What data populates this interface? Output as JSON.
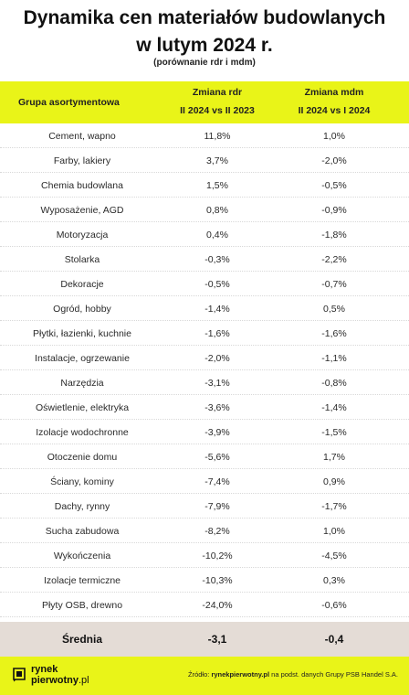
{
  "header": {
    "title_line1": "Dynamika cen materiałów budowlanych",
    "title_line2": "w lutym 2024 r.",
    "subtitle": "(porównanie  rdr i mdm)"
  },
  "columns": {
    "group": "Grupa asortymentowa",
    "col_a_line1": "Zmiana rdr",
    "col_a_line2": "II 2024 vs II 2023",
    "col_b_line1": "Zmiana mdm",
    "col_b_line2": "II 2024  vs I 2024"
  },
  "rows": [
    {
      "group": "Cement, wapno",
      "rdr": "11,8%",
      "mdm": "1,0%"
    },
    {
      "group": "Farby, lakiery",
      "rdr": "3,7%",
      "mdm": "-2,0%"
    },
    {
      "group": "Chemia budowlana",
      "rdr": "1,5%",
      "mdm": "-0,5%"
    },
    {
      "group": "Wyposażenie, AGD",
      "rdr": "0,8%",
      "mdm": "-0,9%"
    },
    {
      "group": "Motoryzacja",
      "rdr": "0,4%",
      "mdm": "-1,8%"
    },
    {
      "group": "Stolarka",
      "rdr": "-0,3%",
      "mdm": "-2,2%"
    },
    {
      "group": "Dekoracje",
      "rdr": "-0,5%",
      "mdm": "-0,7%"
    },
    {
      "group": "Ogród, hobby",
      "rdr": "-1,4%",
      "mdm": "0,5%"
    },
    {
      "group": "Płytki, łazienki, kuchnie",
      "rdr": "-1,6%",
      "mdm": "-1,6%"
    },
    {
      "group": "Instalacje, ogrzewanie",
      "rdr": "-2,0%",
      "mdm": "-1,1%"
    },
    {
      "group": "Narzędzia",
      "rdr": "-3,1%",
      "mdm": "-0,8%"
    },
    {
      "group": "Oświetlenie, elektryka",
      "rdr": "-3,6%",
      "mdm": "-1,4%"
    },
    {
      "group": "Izolacje wodochronne",
      "rdr": "-3,9%",
      "mdm": "-1,5%"
    },
    {
      "group": "Otoczenie domu",
      "rdr": "-5,6%",
      "mdm": "1,7%"
    },
    {
      "group": "Ściany, kominy",
      "rdr": "-7,4%",
      "mdm": "0,9%"
    },
    {
      "group": "Dachy, rynny",
      "rdr": "-7,9%",
      "mdm": "-1,7%"
    },
    {
      "group": "Sucha zabudowa",
      "rdr": "-8,2%",
      "mdm": "1,0%"
    },
    {
      "group": "Wykończenia",
      "rdr": "-10,2%",
      "mdm": "-4,5%"
    },
    {
      "group": "Izolacje termiczne",
      "rdr": "-10,3%",
      "mdm": "0,3%"
    },
    {
      "group": "Płyty OSB, drewno",
      "rdr": "-24,0%",
      "mdm": "-0,6%"
    }
  ],
  "average": {
    "label": "Średnia",
    "rdr": "-3,1",
    "mdm": "-0,4"
  },
  "footer": {
    "logo_line1": "rynek",
    "logo_line2a": "pierwotny",
    "logo_line2b": ".pl",
    "source_prefix": "Źródło: ",
    "source_site": "rynekpierwotny.pl",
    "source_suffix": " na podst. danych Grupy PSB Handel S.A."
  },
  "colors": {
    "accent": "#e9f418",
    "average_bg": "#e4dcd6"
  }
}
